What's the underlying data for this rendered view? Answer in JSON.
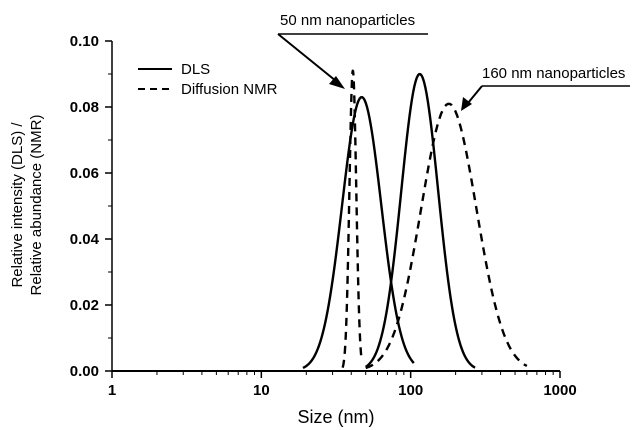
{
  "chart_data": {
    "type": "line",
    "xlabel": "Size (nm)",
    "ylabel_lines": [
      "Relative intensity (DLS) /",
      "Relative abundance (NMR)"
    ],
    "xscale": "log",
    "xlim": [
      1,
      1000
    ],
    "ylim": [
      0,
      0.1
    ],
    "x_ticks": [
      1,
      10,
      100,
      1000
    ],
    "x_tick_labels": [
      "1",
      "10",
      "100",
      "1000"
    ],
    "y_ticks": [
      0,
      0.02,
      0.04,
      0.06,
      0.08,
      0.1
    ],
    "y_tick_labels": [
      "0.00",
      "0.02",
      "0.04",
      "0.06",
      "0.08",
      "0.10"
    ],
    "grid": false,
    "legend_position": "top-left",
    "series": [
      {
        "name": "DLS",
        "style": "solid",
        "color": "#000000",
        "peaks": [
          {
            "center_nm": 47,
            "height": 0.083,
            "range_nm": [
              19,
              105
            ]
          },
          {
            "center_nm": 115,
            "height": 0.09,
            "range_nm": [
              50,
              270
            ]
          }
        ]
      },
      {
        "name": "Diffusion NMR",
        "style": "dashed",
        "color": "#000000",
        "peaks": [
          {
            "center_nm": 41,
            "height": 0.091,
            "range_nm": [
              35,
              47
            ]
          },
          {
            "center_nm": 180,
            "height": 0.081,
            "range_nm": [
              50,
              600
            ]
          }
        ]
      }
    ],
    "annotations": [
      {
        "text": "50 nm nanoparticles",
        "points_to_nm": 41
      },
      {
        "text": "160 nm nanoparticles",
        "points_to_nm": 180
      }
    ]
  }
}
